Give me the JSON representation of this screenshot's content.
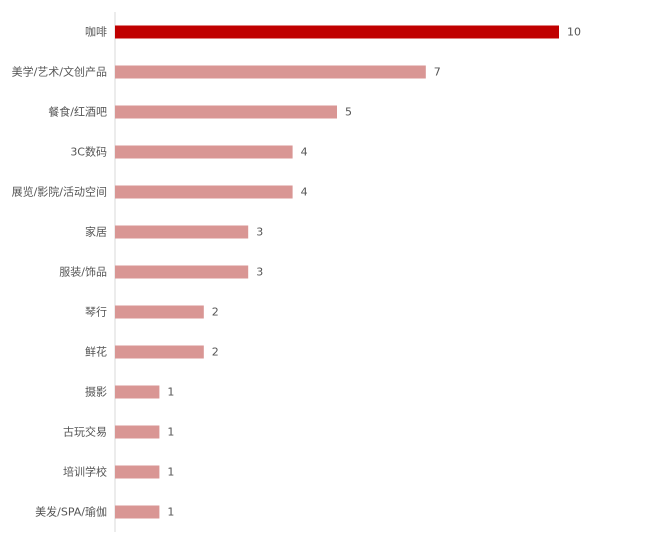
{
  "chart_data": {
    "type": "bar",
    "orientation": "horizontal",
    "categories": [
      "咖啡",
      "美学/艺术/文创产品",
      "餐食/红酒吧",
      "3C数码",
      "展览/影院/活动空间",
      "家居",
      "服装/饰品",
      "琴行",
      "鲜花",
      "摄影",
      "古玩交易",
      "培训学校",
      "美发/SPA/瑜伽"
    ],
    "values": [
      10,
      7,
      5,
      4,
      4,
      3,
      3,
      2,
      2,
      1,
      1,
      1,
      1
    ],
    "data_labels": [
      "10",
      "7",
      "5",
      "4",
      "4",
      "3",
      "3",
      "2",
      "2",
      "1",
      "1",
      "1",
      "1"
    ],
    "title": "",
    "xlabel": "",
    "ylabel": "",
    "xlim": [
      0,
      10
    ],
    "grid": false,
    "legend": "none",
    "colors": {
      "highlight": "#c00000",
      "default": "#d99694",
      "axis": "#d9d9d9",
      "label": "#555555"
    },
    "highlight_index": 0
  }
}
